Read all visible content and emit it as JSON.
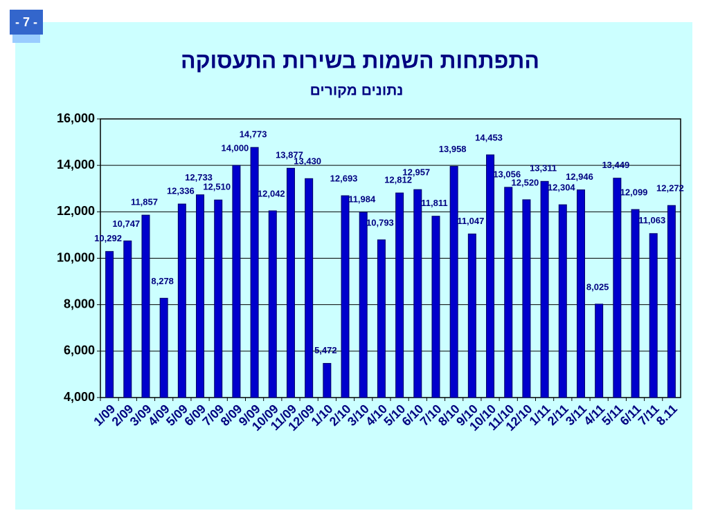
{
  "page_number": "- 7 -",
  "chart_data": {
    "type": "bar",
    "title": "התפתחות השמות בשירות התעסוקה",
    "subtitle": "נתונים מקורים",
    "categories": [
      "1/09",
      "2/09",
      "3/09",
      "4/09",
      "5/09",
      "6/09",
      "7/09",
      "8/09",
      "9/09",
      "10/09",
      "11/09",
      "12/09",
      "1/10",
      "2/10",
      "3/10",
      "4/10",
      "5/10",
      "6/10",
      "7/10",
      "8/10",
      "9/10",
      "10/10",
      "11/10",
      "12/10",
      "1/11",
      "2/11",
      "3/11",
      "4/11",
      "5/11",
      "6/11",
      "7/11",
      "8.11"
    ],
    "values": [
      10292,
      10747,
      11857,
      8278,
      12336,
      12733,
      12510,
      14000,
      14773,
      12042,
      13877,
      13430,
      5472,
      12693,
      11984,
      10793,
      12812,
      12957,
      11811,
      13958,
      11047,
      14453,
      13056,
      12520,
      13311,
      12304,
      12946,
      8025,
      13449,
      12099,
      11063,
      12272
    ],
    "value_labels": [
      "10,292",
      "10,747",
      "11,857",
      "8,278",
      "12,336",
      "12,733",
      "12,510",
      "14,000",
      "14,773",
      "12,042",
      "13,877",
      "13,430",
      "5,472",
      "12,693",
      "11,984",
      "10,793",
      "12,812",
      "12,957",
      "11,811",
      "13,958",
      "11,047",
      "14,453",
      "13,056",
      "12,520",
      "13,311",
      "12,304",
      "12,946",
      "8,025",
      "13,449",
      "12,099",
      "11,063",
      "12,272"
    ],
    "color": "#0000cc",
    "ylim": [
      4000,
      16000
    ],
    "yticks": [
      {
        "value": 4000,
        "label": "4,000"
      },
      {
        "value": 6000,
        "label": "6,000"
      },
      {
        "value": 8000,
        "label": "8,000"
      },
      {
        "value": 10000,
        "label": "10,000"
      },
      {
        "value": 12000,
        "label": "12,000"
      },
      {
        "value": 14000,
        "label": "14,000"
      },
      {
        "value": 16000,
        "label": "16,000"
      }
    ],
    "grid": true
  }
}
